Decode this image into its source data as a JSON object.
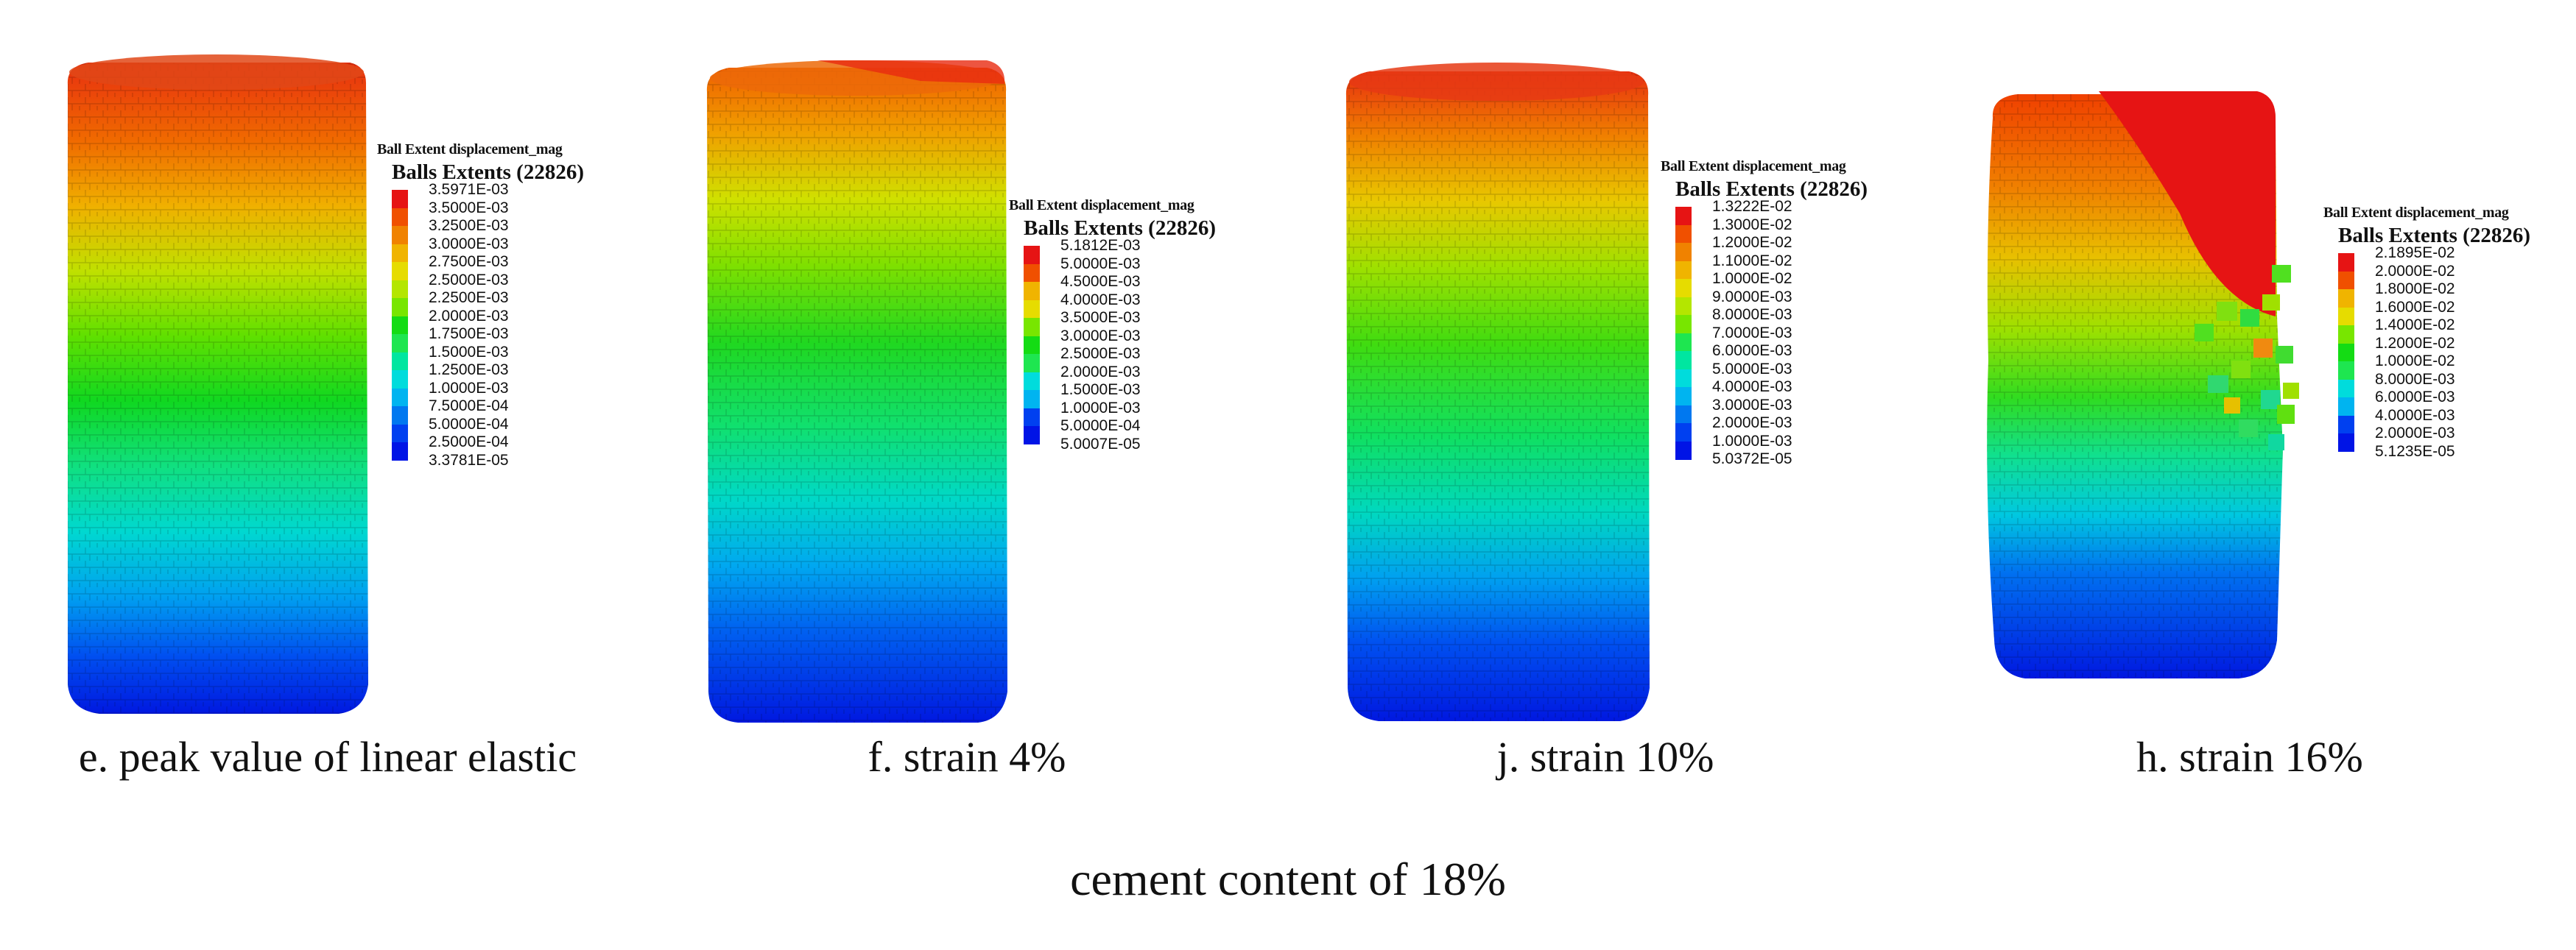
{
  "colormap": [
    "#0014e6",
    "#0040f0",
    "#0078f0",
    "#00b4f0",
    "#00dcdc",
    "#00e6a0",
    "#1ee650",
    "#14dc14",
    "#78e600",
    "#b4e600",
    "#e6dc00",
    "#f0b400",
    "#f08200",
    "#f05000",
    "#e61414"
  ],
  "panels": [
    {
      "caption": "e. peak value of linear elastic",
      "legend_title": "Ball Extent displacement_mag",
      "legend_subtitle": "Balls Extents (22826)",
      "ticks": [
        "3.5971E-03",
        "3.5000E-03",
        "3.2500E-03",
        "3.0000E-03",
        "2.7500E-03",
        "2.5000E-03",
        "2.2500E-03",
        "2.0000E-03",
        "1.7500E-03",
        "1.5000E-03",
        "1.2500E-03",
        "1.0000E-03",
        "7.5000E-04",
        "5.0000E-04",
        "2.5000E-04",
        "3.3781E-05"
      ],
      "state": "peak"
    },
    {
      "caption": "f. strain 4%",
      "legend_title": "Ball Extent displacement_mag",
      "legend_subtitle": "Balls Extents (22826)",
      "ticks": [
        "5.1812E-03",
        "5.0000E-03",
        "4.5000E-03",
        "4.0000E-03",
        "3.5000E-03",
        "3.0000E-03",
        "2.5000E-03",
        "2.0000E-03",
        "1.5000E-03",
        "1.0000E-03",
        "5.0000E-04",
        "5.0007E-05"
      ],
      "state": "strain-4"
    },
    {
      "caption": "j. strain 10%",
      "legend_title": "Ball Extent displacement_mag",
      "legend_subtitle": "Balls Extents (22826)",
      "ticks": [
        "1.3222E-02",
        "1.3000E-02",
        "1.2000E-02",
        "1.1000E-02",
        "1.0000E-02",
        "9.0000E-03",
        "8.0000E-03",
        "7.0000E-03",
        "6.0000E-03",
        "5.0000E-03",
        "4.0000E-03",
        "3.0000E-03",
        "2.0000E-03",
        "1.0000E-03",
        "5.0372E-05"
      ],
      "state": "strain-10"
    },
    {
      "caption": "h. strain 16%",
      "legend_title": "Ball Extent displacement_mag",
      "legend_subtitle": "Balls Extents (22826)",
      "ticks": [
        "2.1895E-02",
        "2.0000E-02",
        "1.8000E-02",
        "1.6000E-02",
        "1.4000E-02",
        "1.2000E-02",
        "1.0000E-02",
        "8.0000E-03",
        "6.0000E-03",
        "4.0000E-03",
        "2.0000E-03",
        "5.1235E-05"
      ],
      "state": "strain-16"
    }
  ],
  "figure_caption": "cement content of 18%"
}
